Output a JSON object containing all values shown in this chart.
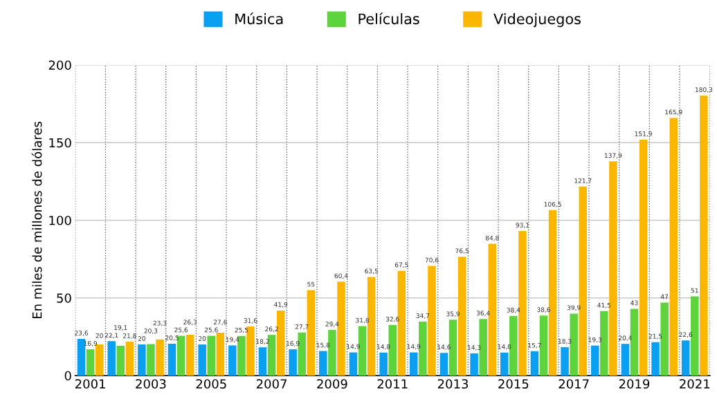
{
  "chart_data": {
    "type": "bar",
    "ylabel": "En miles de millones de dólares",
    "categories": [
      "2001",
      null,
      "2003",
      null,
      "2005",
      null,
      "2007",
      null,
      "2009",
      null,
      "2011",
      null,
      "2013",
      null,
      "2015",
      null,
      "2017",
      null,
      "2019",
      null,
      "2021"
    ],
    "series": [
      {
        "name": "Música",
        "color": "#0a9ff0",
        "values": [
          23.6,
          22.1,
          20,
          20.5,
          20,
          19.4,
          18.2,
          16.9,
          15.8,
          14.9,
          14.8,
          14.9,
          14.6,
          14.3,
          14.8,
          15.7,
          18.3,
          19.3,
          20.4,
          21.5,
          22.6
        ],
        "value_labels": [
          "23,6",
          "22,1",
          "20",
          "20,5",
          "20",
          "19,4",
          "18,2",
          "16,9",
          "15,8",
          "14,9",
          "14,8",
          "14,9",
          "14,6",
          "14,3",
          "14,8",
          "15,7",
          "18,3",
          "19,3",
          "20,4",
          "21,5",
          "22,6"
        ]
      },
      {
        "name": "Películas",
        "color": "#5fd33b",
        "values": [
          16.9,
          19.1,
          20.3,
          25.6,
          25.6,
          25.5,
          26.2,
          27.7,
          29.4,
          31.8,
          32.6,
          34.7,
          35.9,
          36.4,
          38.4,
          38.6,
          39.9,
          41.5,
          43,
          47,
          51
        ],
        "value_labels": [
          "16,9",
          "19,1",
          "20,3",
          "25,6",
          "25,6",
          "25,5",
          "26,2",
          "27,7",
          "29,4",
          "31,8",
          "32,6",
          "34,7",
          "35,9",
          "36,4",
          "38,4",
          "38,6",
          "39,9",
          "41,5",
          "43",
          "47",
          "51"
        ]
      },
      {
        "name": "Videojuegos",
        "color": "#fbb700",
        "values": [
          20,
          21.8,
          23.3,
          26.3,
          27.6,
          31.6,
          41.9,
          55,
          60.4,
          63.5,
          67.5,
          70.6,
          76.5,
          84.8,
          93.1,
          106.5,
          121.7,
          137.9,
          151.9,
          165.9,
          180.3
        ],
        "value_labels": [
          "20",
          "21,8",
          "23,3",
          "26,3",
          "27,6",
          "31,6",
          "41,9",
          "55",
          "60,4",
          "63,5",
          "67,5",
          "70,6",
          "76,5",
          "84,8",
          "93,1",
          "106,5",
          "121,7",
          "137,9",
          "151,9",
          "165,9",
          "180,3"
        ]
      }
    ],
    "ylim": [
      0,
      200
    ],
    "yticks": [
      0,
      50,
      100,
      150,
      200
    ],
    "grid": true,
    "legend": "top"
  }
}
